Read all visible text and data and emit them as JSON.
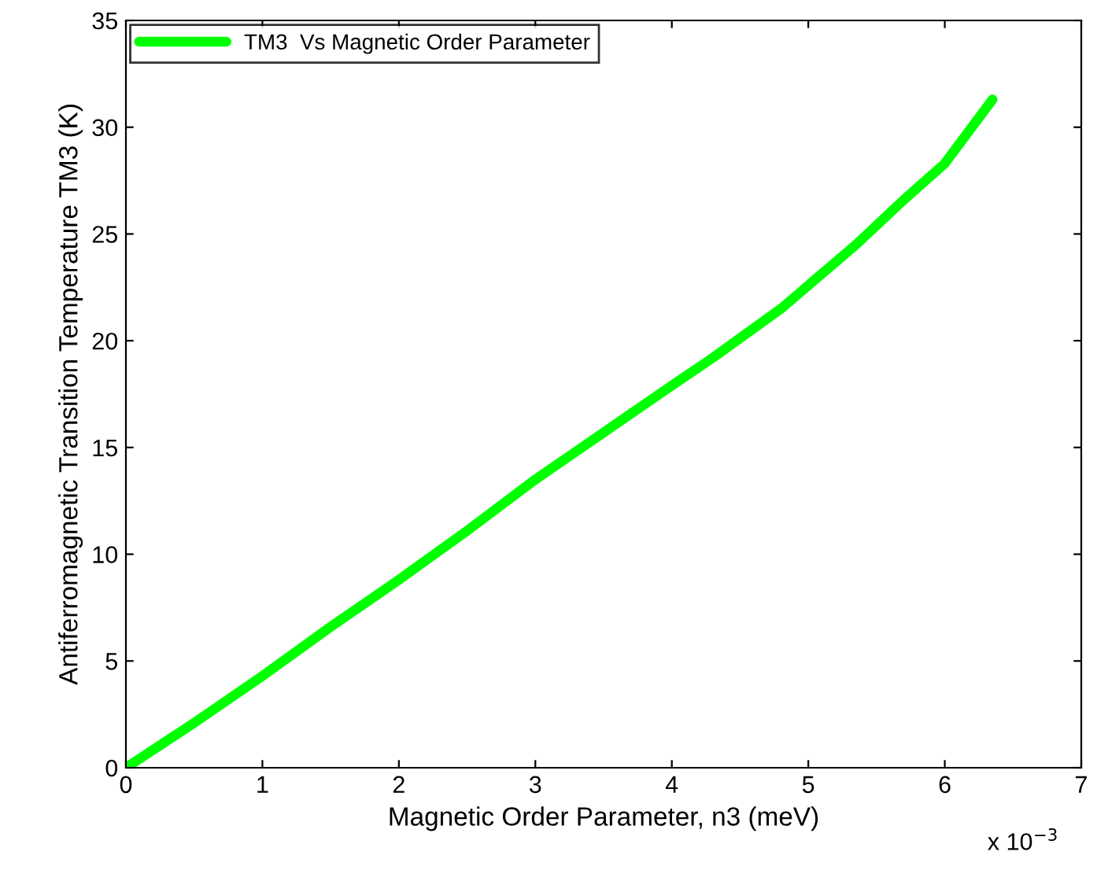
{
  "chart_data": {
    "type": "line",
    "xlabel": "Magnetic Order Parameter, n3 (meV)",
    "ylabel": "Antiferromagnetic Transition Temperature TM3 (K)",
    "annotations": [
      "x 10$^{−3}$"
    ],
    "series": [
      {
        "name": "TM3  Vs Magnetic Order Parameter",
        "color": "#00ff00",
        "x": [
          0,
          0.5,
          1,
          1.5,
          2,
          2.5,
          3,
          3.5,
          4,
          4.3,
          4.8,
          5.35,
          5.7,
          6,
          6.35
        ],
        "values": [
          0,
          2.1,
          4.3,
          6.6,
          8.8,
          11.1,
          13.5,
          15.7,
          17.9,
          19.2,
          21.5,
          24.5,
          26.6,
          28.3,
          31.3
        ]
      }
    ],
    "xlim": [
      0,
      7
    ],
    "ylim": [
      0,
      35
    ],
    "xticks": [
      0,
      1,
      2,
      3,
      4,
      5,
      6,
      7
    ],
    "yticks": [
      0,
      5,
      10,
      15,
      20,
      25,
      30,
      35
    ],
    "legend": "top left",
    "grid": false,
    "marker": "none",
    "line_style": "solid"
  }
}
